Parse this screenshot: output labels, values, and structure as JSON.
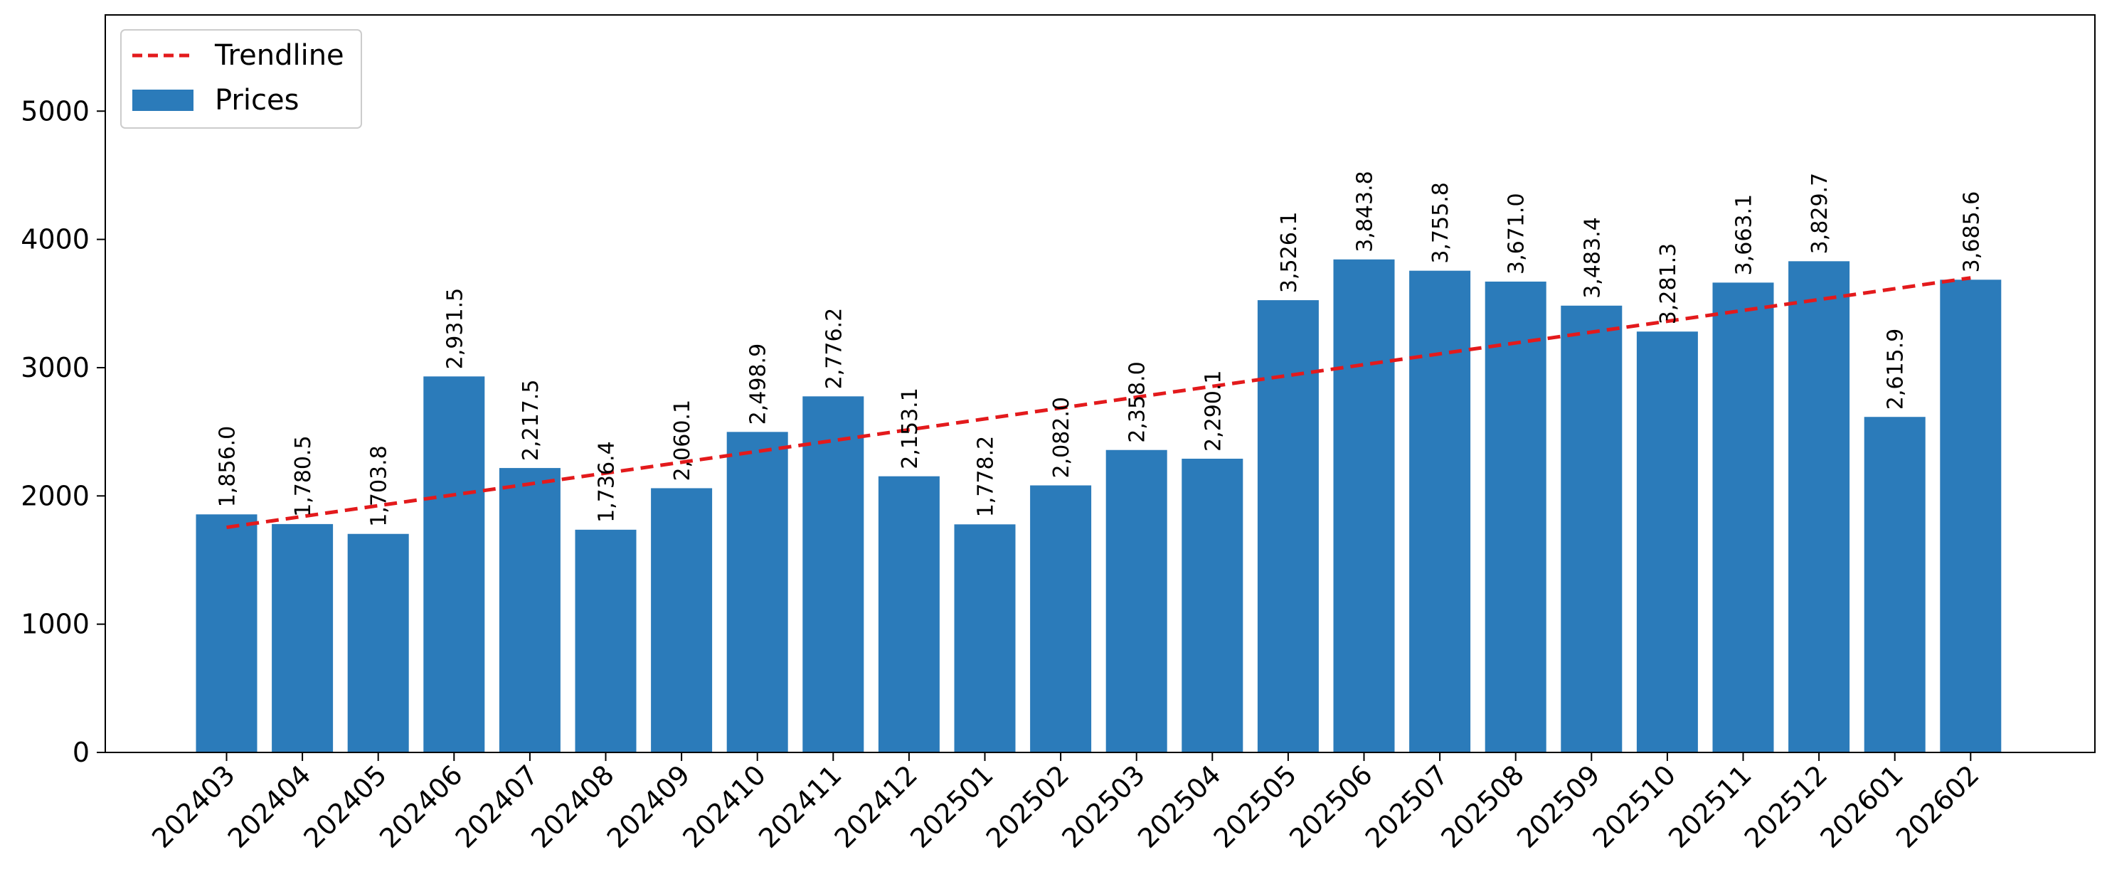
{
  "chart_data": {
    "type": "bar",
    "title": "",
    "xlabel": "",
    "ylabel": "",
    "ylim": [
      0,
      5750
    ],
    "yticks": [
      0,
      1000,
      2000,
      3000,
      4000,
      5000
    ],
    "grid": false,
    "legend_position": "top-left",
    "categories": [
      "202403",
      "202404",
      "202405",
      "202406",
      "202407",
      "202408",
      "202409",
      "202410",
      "202411",
      "202412",
      "202501",
      "202502",
      "202503",
      "202504",
      "202505",
      "202506",
      "202507",
      "202508",
      "202509",
      "202510",
      "202511",
      "202512",
      "202601",
      "202602"
    ],
    "series": [
      {
        "name": "Prices",
        "kind": "bar",
        "color": "#2b7bba",
        "values": [
          1856.0,
          1780.5,
          1703.8,
          2931.5,
          2217.5,
          1736.4,
          2060.1,
          2498.9,
          2776.2,
          2153.1,
          1778.2,
          2082.0,
          2358.0,
          2290.1,
          3526.1,
          3843.8,
          3755.8,
          3671.0,
          3483.4,
          3281.3,
          3663.1,
          3829.7,
          2615.9,
          3685.6
        ],
        "labels": [
          "1,856.0",
          "1,780.5",
          "1,703.8",
          "2,931.5",
          "2,217.5",
          "1,736.4",
          "2,060.1",
          "2,498.9",
          "2,776.2",
          "2,153.1",
          "1,778.2",
          "2,082.0",
          "2,358.0",
          "2,290.1",
          "3,526.1",
          "3,843.8",
          "3,755.8",
          "3,671.0",
          "3,483.4",
          "3,281.3",
          "3,663.1",
          "3,829.7",
          "2,615.9",
          "3,685.6"
        ]
      },
      {
        "name": "Trendline",
        "kind": "line",
        "style": "dashed",
        "color": "#e31a1c",
        "start": 1755,
        "end": 3700
      }
    ]
  }
}
